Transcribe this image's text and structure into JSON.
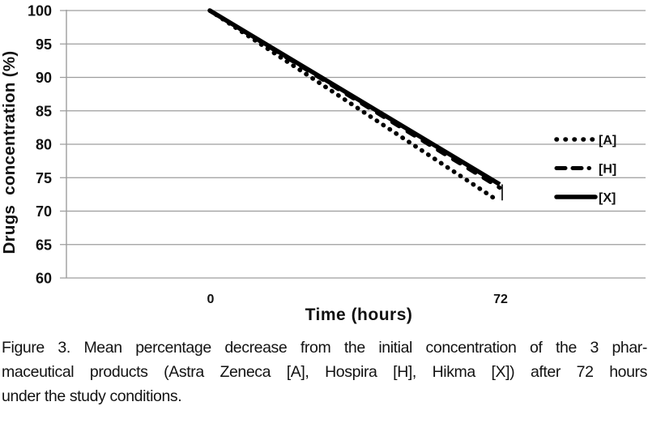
{
  "figure": {
    "caption_lines": [
      "Figure 3. Mean percentage decrease from the initial concentration of the 3 phar-",
      "maceutical products (Astra Zeneca [A], Hospira [H], Hikma [X]) after 72 hours",
      "under the study conditions."
    ]
  },
  "chart_data": {
    "type": "line",
    "title": "",
    "xlabel": "Time (hours)",
    "ylabel": "Drugs  concentration (%)",
    "x": [
      0,
      72
    ],
    "xtick_labels": [
      "0",
      "72"
    ],
    "yticks": [
      100,
      95,
      90,
      85,
      80,
      75,
      70,
      65,
      60
    ],
    "ylim": [
      60,
      100
    ],
    "grid": "horizontal-only",
    "legend_position": "right-inside",
    "series": [
      {
        "name": "[A]",
        "product": "Astra Zeneca",
        "style": "dotted",
        "values": [
          100,
          71.7
        ]
      },
      {
        "name": "[H]",
        "product": "Hospira",
        "style": "dashed",
        "values": [
          100,
          73.5
        ]
      },
      {
        "name": "[X]",
        "product": "Hikma",
        "style": "solid",
        "values": [
          100,
          74
        ]
      }
    ],
    "error_bar": {
      "x": 72,
      "from": 71.6,
      "to": 74
    },
    "colors": {
      "line": "#000000",
      "grid": "#9d9d9d",
      "axis": "#9d9d9d",
      "text": "#111111"
    }
  }
}
